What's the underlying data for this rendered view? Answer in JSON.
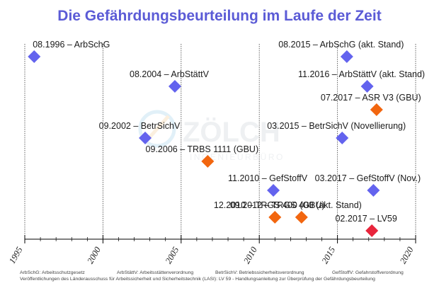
{
  "chart_data": {
    "type": "scatter",
    "title": "Die Gefährdungsbeurteilung im Laufe der Zeit",
    "xlim": [
      1995,
      2020
    ],
    "xticks": [
      "1995",
      "2000",
      "2005",
      "2010",
      "2015",
      "2020"
    ],
    "colors": {
      "blue": "#6363ee",
      "orange": "#f2660f",
      "red": "#e8253c",
      "grid": "#555555"
    },
    "events": [
      {
        "label": "08.1996 – ArbSchG",
        "x": 1995.6,
        "row": 1,
        "color": "blue"
      },
      {
        "label": "08.2004 – ArbStättV",
        "x": 2004.6,
        "row": 2,
        "color": "blue"
      },
      {
        "label": "09.2002 – BetrSichV",
        "x": 2002.7,
        "row": 4,
        "color": "blue"
      },
      {
        "label": "09.2006 – TRBS 1111 (GBU)",
        "x": 2006.7,
        "row": 5,
        "color": "orange"
      },
      {
        "label": "11.2010 – GefStoffV",
        "x": 2010.9,
        "row": 6,
        "color": "blue"
      },
      {
        "label": "12.2010 – TRGS 400 (GBU)",
        "x": 2011.0,
        "row": 7,
        "color": "orange"
      },
      {
        "label": "09.2012 – TRGS 400 (akt. Stand)",
        "x": 2012.7,
        "row": 7,
        "color": "orange"
      },
      {
        "label": "08.2015 – ArbSchG (akt. Stand)",
        "x": 2015.6,
        "row": 1,
        "color": "blue"
      },
      {
        "label": "11.2016 – ArbStättV (akt. Stand)",
        "x": 2016.9,
        "row": 2,
        "color": "blue"
      },
      {
        "label": "07.2017 – ASR V3 (GBU)",
        "x": 2017.5,
        "row": 3,
        "color": "orange"
      },
      {
        "label": "03.2015 – BetrSichV (Novellierung)",
        "x": 2015.3,
        "row": 4,
        "color": "blue"
      },
      {
        "label": "03.2017 – GefStoffV (Nov.)",
        "x": 2017.3,
        "row": 6,
        "color": "blue"
      },
      {
        "label": "02.2017 – LV59",
        "x": 2017.2,
        "row": 8,
        "color": "red"
      }
    ]
  },
  "watermark": {
    "line1": "ZÖLCH",
    "line2": "INGENIEURBÜRO"
  },
  "footer": {
    "abbreviations": [
      "ArbSchG: Arbeitsschutzgesetz",
      "ArbStättV: Arbeitsstättenverordnung",
      "BetrSichV: Betriebssicherheitsverordnung",
      "GefStoffV: Gefahrstoffverordnung"
    ],
    "source": "Veröffentlichungen des Länderausschuss für Arbeitssicherheit und Sicherheitstechnik (LASI): LV 59 - Handlungsanleitung zur Überprüfung der Gefährdungsbeurteilung"
  }
}
